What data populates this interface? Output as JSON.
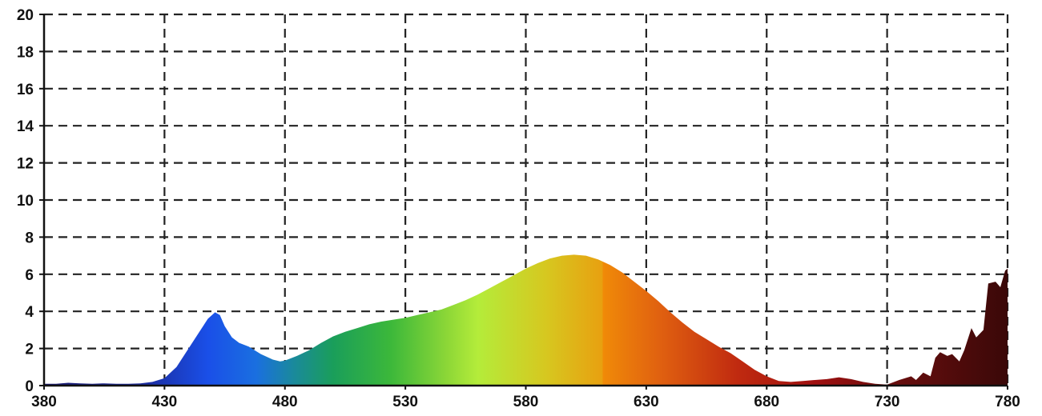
{
  "chart_data": {
    "type": "area",
    "title": "",
    "xlabel": "",
    "ylabel": "",
    "xlim": [
      380,
      780
    ],
    "ylim": [
      0,
      20
    ],
    "grid": true,
    "grid_style": "dashed",
    "x_ticks": [
      "380",
      "430",
      "480",
      "530",
      "580",
      "630",
      "680",
      "730",
      "780"
    ],
    "y_ticks": [
      "0",
      "2",
      "4",
      "6",
      "8",
      "10",
      "12",
      "14",
      "16",
      "18",
      "20"
    ],
    "fill": "visible-spectrum gradient (blue to green to yellow to orange to red to dark red)",
    "series": [
      {
        "x": [
          380,
          385,
          390,
          395,
          400,
          405,
          410,
          415,
          420,
          425,
          430,
          435,
          440,
          445,
          448,
          451,
          453,
          455,
          458,
          461,
          465,
          470,
          475,
          478,
          480,
          485,
          490,
          495,
          500,
          505,
          510,
          515,
          520,
          525,
          530,
          535,
          540,
          545,
          550,
          555,
          560,
          565,
          570,
          575,
          580,
          585,
          590,
          595,
          600,
          605,
          610,
          615,
          620,
          625,
          630,
          635,
          640,
          645,
          650,
          655,
          660,
          665,
          670,
          675,
          680,
          685,
          690,
          695,
          700,
          705,
          710,
          715,
          720,
          725,
          730,
          735,
          740,
          742,
          745,
          748,
          750,
          752,
          755,
          757,
          760,
          762,
          765,
          767,
          770,
          772,
          775,
          777,
          779,
          780
        ],
        "values": [
          0.1,
          0.1,
          0.15,
          0.12,
          0.1,
          0.12,
          0.1,
          0.1,
          0.12,
          0.2,
          0.4,
          1.0,
          2.0,
          3.0,
          3.6,
          3.95,
          3.8,
          3.2,
          2.6,
          2.3,
          2.1,
          1.7,
          1.4,
          1.3,
          1.35,
          1.6,
          1.9,
          2.3,
          2.65,
          2.9,
          3.1,
          3.3,
          3.45,
          3.55,
          3.65,
          3.8,
          3.95,
          4.1,
          4.35,
          4.6,
          4.9,
          5.25,
          5.6,
          5.95,
          6.3,
          6.6,
          6.85,
          7.0,
          7.05,
          7.0,
          6.8,
          6.5,
          6.1,
          5.6,
          5.1,
          4.55,
          3.95,
          3.4,
          2.9,
          2.5,
          2.1,
          1.75,
          1.3,
          0.85,
          0.5,
          0.25,
          0.2,
          0.25,
          0.3,
          0.35,
          0.45,
          0.35,
          0.2,
          0.1,
          0.05,
          0.3,
          0.5,
          0.3,
          0.7,
          0.5,
          1.5,
          1.8,
          1.6,
          1.7,
          1.3,
          1.9,
          3.1,
          2.6,
          3.0,
          5.5,
          5.6,
          5.3,
          6.2,
          6.3
        ]
      }
    ]
  }
}
